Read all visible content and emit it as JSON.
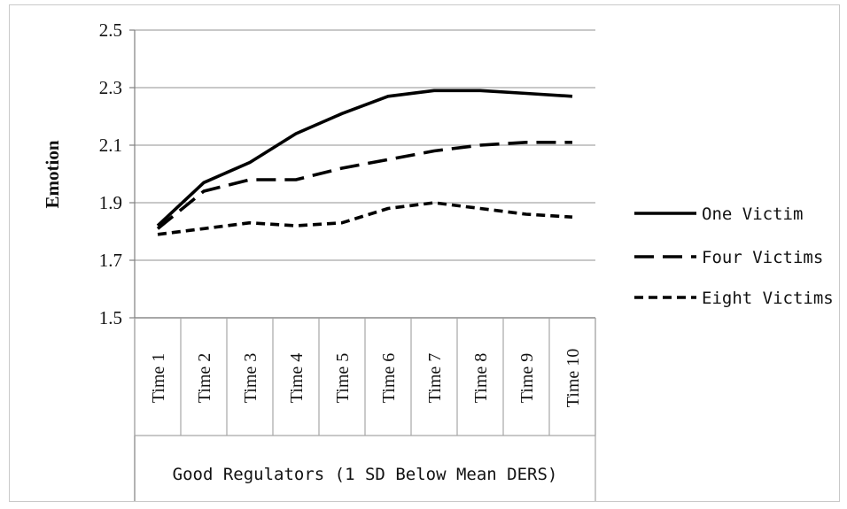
{
  "chart_data": {
    "type": "line",
    "ylabel": "Emotion",
    "ylim": [
      1.5,
      2.5
    ],
    "yticks": [
      "1.5",
      "1.7",
      "1.9",
      "2.1",
      "2.3",
      "2.5"
    ],
    "grid": true,
    "legend_position": "right",
    "categories": [
      "Time 1",
      "Time 2",
      "Time 3",
      "Time 4",
      "Time 5",
      "Time 6",
      "Time 7",
      "Time 8",
      "Time 9",
      "Time 10"
    ],
    "group_label": "Good Regulators (1 SD Below Mean DERS)",
    "series": [
      {
        "name": "One Victim",
        "style": "solid",
        "color": "#000000",
        "values": [
          1.82,
          1.97,
          2.04,
          2.14,
          2.21,
          2.27,
          2.29,
          2.29,
          2.28,
          2.27
        ]
      },
      {
        "name": "Four Victims",
        "style": "long-dash",
        "color": "#000000",
        "values": [
          1.81,
          1.94,
          1.98,
          1.98,
          2.02,
          2.05,
          2.08,
          2.1,
          2.11,
          2.11
        ]
      },
      {
        "name": "Eight Victims",
        "style": "short-dash",
        "color": "#000000",
        "values": [
          1.79,
          1.81,
          1.83,
          1.82,
          1.83,
          1.88,
          1.9,
          1.88,
          1.86,
          1.85
        ]
      }
    ]
  }
}
